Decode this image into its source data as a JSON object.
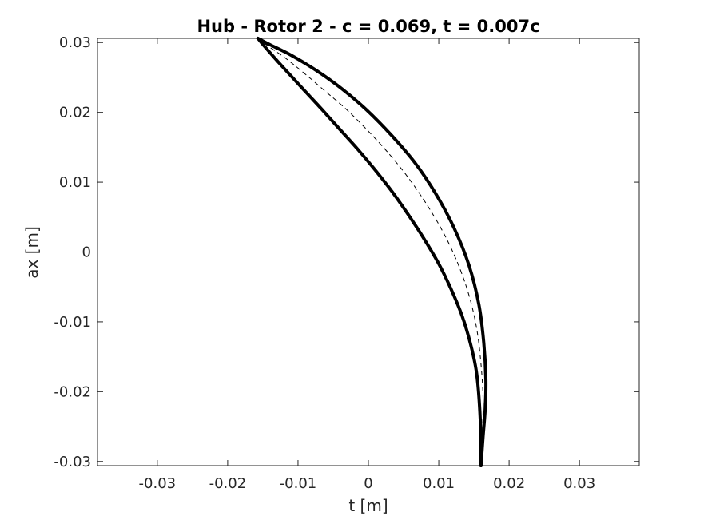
{
  "chart_data": {
    "type": "line",
    "title": "Hub - Rotor 2  - c = 0.069, t = 0.007c",
    "xlabel": "t [m]",
    "ylabel": "ax [m]",
    "xlim": [
      -0.0385,
      0.0385
    ],
    "ylim": [
      -0.0306,
      0.0306
    ],
    "xticks": [
      -0.03,
      -0.02,
      -0.01,
      0,
      0.01,
      0.02,
      0.03
    ],
    "xtick_labels": [
      "-0.03",
      "-0.02",
      "-0.01",
      "0",
      "0.01",
      "0.02",
      "0.03"
    ],
    "yticks": [
      -0.03,
      -0.02,
      -0.01,
      0,
      0.01,
      0.02,
      0.03
    ],
    "ytick_labels": [
      "-0.03",
      "-0.02",
      "-0.01",
      "0",
      "0.01",
      "0.02",
      "0.03"
    ],
    "grid": false,
    "series": [
      {
        "style": "solid-thick",
        "color": "#000000",
        "x": [
          -0.0157,
          -0.0148,
          -0.0128,
          -0.0108,
          -0.0086,
          -0.0064,
          -0.004,
          -0.0015,
          0.001,
          0.0034,
          0.0057,
          0.0079,
          0.0099,
          0.0117,
          0.0133,
          0.0145,
          0.0154,
          0.0159,
          0.016
        ],
        "y": [
          0.0306,
          0.0295,
          0.0272,
          0.025,
          0.0226,
          0.0202,
          0.0175,
          0.0147,
          0.0117,
          0.0086,
          0.0053,
          0.0019,
          -0.0015,
          -0.0052,
          -0.0091,
          -0.0131,
          -0.0175,
          -0.024,
          -0.0306
        ]
      },
      {
        "style": "solid-thick",
        "color": "#000000",
        "x": [
          -0.0157,
          -0.014,
          -0.011,
          -0.0074,
          -0.0038,
          -0.0002,
          0.0033,
          0.0066,
          0.0096,
          0.0122,
          0.0143,
          0.0157,
          0.0164,
          0.0167,
          0.0166,
          0.0163,
          0.016
        ],
        "y": [
          0.0306,
          0.0297,
          0.0282,
          0.026,
          0.0234,
          0.0203,
          0.0167,
          0.0128,
          0.0083,
          0.0034,
          -0.0019,
          -0.0075,
          -0.013,
          -0.0183,
          -0.0225,
          -0.0264,
          -0.0306
        ]
      },
      {
        "style": "dashed-thin",
        "color": "#000000",
        "x": [
          -0.0157,
          -0.0144,
          -0.0117,
          -0.009,
          -0.0061,
          -0.0031,
          -0.0001,
          0.0029,
          0.0057,
          0.0083,
          0.0107,
          0.0127,
          0.0143,
          0.0154,
          0.016,
          0.0163,
          0.0162,
          0.016
        ],
        "y": [
          0.0306,
          0.0296,
          0.0277,
          0.0255,
          0.023,
          0.0204,
          0.0174,
          0.0141,
          0.0106,
          0.0068,
          0.0027,
          -0.0016,
          -0.0062,
          -0.011,
          -0.016,
          -0.021,
          -0.026,
          -0.0306
        ]
      }
    ]
  }
}
